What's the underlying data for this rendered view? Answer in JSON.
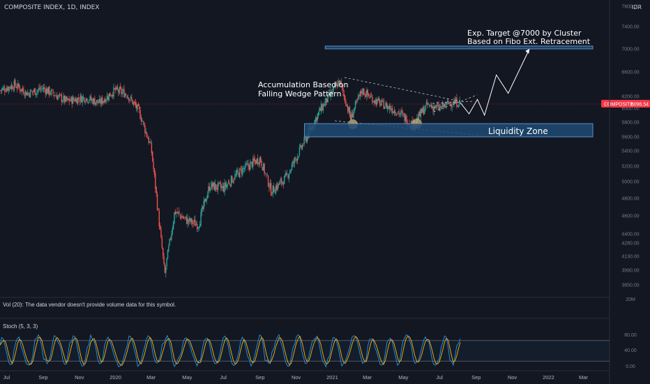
{
  "header": {
    "symbol": "COMPOSITE INDEX, 1D, INDEX",
    "currency": "IDR"
  },
  "price_scale": {
    "ticks": [
      "7600.00",
      "7400.00",
      "7000.00",
      "6600.00",
      "6200.00",
      "6000.00",
      "5800.00",
      "5600.00",
      "5400.00",
      "5200.00",
      "5000.00",
      "4800.00",
      "4600.00",
      "4400.00",
      "4280.00",
      "4130.00",
      "3990.00",
      "3850.00"
    ]
  },
  "last_price": {
    "label": "COMPOSITE",
    "value": "6096.54",
    "color": "#f23645"
  },
  "annotations": {
    "target_line1": "Exp. Target @7000 by Cluster",
    "target_line2": "Based on Fibo Ext. Retracement",
    "accum_line1": "Accumulation Based on",
    "accum_line2": "Falling Wedge Pattern",
    "liquidity": "Liquidity Zone"
  },
  "volume_pane": {
    "label": "Vol (20): The data vendor doesn't provide volume data for this symbol.",
    "scale_label": "20M"
  },
  "stoch_pane": {
    "label": "Stoch (5, 3, 3)",
    "ticks": [
      "80.00",
      "40.00",
      "0.00"
    ]
  },
  "time_axis": [
    "Jul",
    "Sep",
    "Nov",
    "2020",
    "Mar",
    "May",
    "Jul",
    "Sep",
    "Nov",
    "2021",
    "Mar",
    "May",
    "Jul",
    "Sep",
    "Nov",
    "2022",
    "Mar"
  ],
  "colors": {
    "background": "#131722",
    "up": "#26a69a",
    "down": "#ef5350",
    "zone_fill": "#1e4b73",
    "zone_border": "#5b8fc7",
    "circle": "#c9a56b",
    "stoch_k": "#2196f3",
    "stoch_d": "#ffb300",
    "text": "#d1d4dc"
  },
  "chart_data": {
    "type": "candlestick",
    "ylim": [
      3850,
      7600
    ],
    "x_range": [
      "2019-06-20",
      "2022-03-31"
    ],
    "price_path": [
      [
        "2019-06-20",
        6300
      ],
      [
        "2019-07-15",
        6390
      ],
      [
        "2019-08-05",
        6250
      ],
      [
        "2019-09-01",
        6330
      ],
      [
        "2019-10-10",
        6120
      ],
      [
        "2019-11-10",
        6180
      ],
      [
        "2019-12-05",
        6090
      ],
      [
        "2019-12-31",
        6300
      ],
      [
        "2020-01-20",
        6240
      ],
      [
        "2020-02-10",
        5950
      ],
      [
        "2020-03-01",
        5450
      ],
      [
        "2020-03-12",
        4700
      ],
      [
        "2020-03-24",
        3937
      ],
      [
        "2020-04-10",
        4650
      ],
      [
        "2020-04-30",
        4550
      ],
      [
        "2020-05-20",
        4500
      ],
      [
        "2020-06-08",
        4950
      ],
      [
        "2020-07-01",
        4920
      ],
      [
        "2020-08-01",
        5150
      ],
      [
        "2020-09-01",
        5300
      ],
      [
        "2020-09-20",
        4880
      ],
      [
        "2020-10-15",
        5050
      ],
      [
        "2020-11-10",
        5450
      ],
      [
        "2020-12-10",
        5950
      ],
      [
        "2021-01-13",
        6450
      ],
      [
        "2021-02-01",
        5850
      ],
      [
        "2021-02-20",
        6300
      ],
      [
        "2021-03-15",
        6120
      ],
      [
        "2021-04-20",
        5960
      ],
      [
        "2021-05-17",
        5760
      ],
      [
        "2021-06-10",
        6050
      ],
      [
        "2021-07-01",
        6000
      ],
      [
        "2021-07-20",
        6100
      ],
      [
        "2021-08-05",
        6096
      ]
    ],
    "stoch_oscillator": {
      "levels": [
        80,
        20
      ]
    },
    "liquidity_zone": {
      "y": [
        5600,
        5780
      ],
      "x": [
        "2020-11-15",
        "2022-03-31"
      ]
    },
    "target_zone": {
      "y": [
        7000,
        7050
      ],
      "x": [
        "2020-12-20",
        "2022-03-31"
      ]
    },
    "projection": [
      [
        "2021-08-05",
        6096
      ],
      [
        "2021-08-20",
        5920
      ],
      [
        "2021-09-03",
        6150
      ],
      [
        "2021-09-15",
        5900
      ],
      [
        "2021-10-05",
        6550
      ],
      [
        "2021-10-25",
        6250
      ],
      [
        "2021-11-30",
        7000
      ]
    ]
  }
}
